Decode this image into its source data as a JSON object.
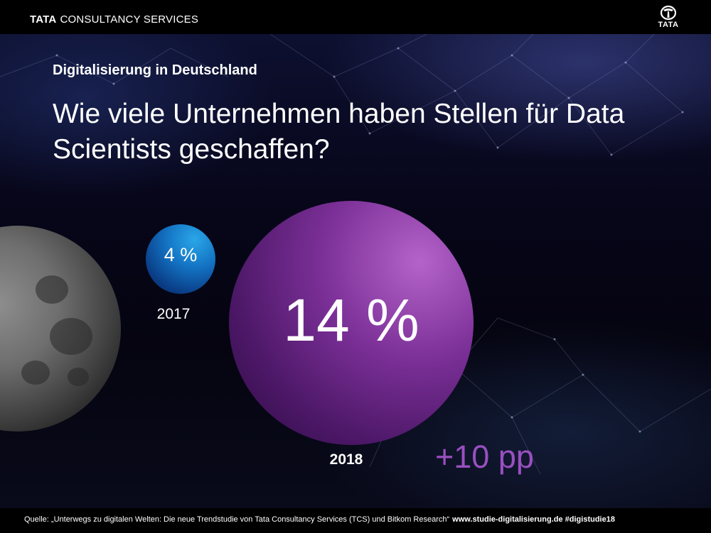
{
  "header": {
    "brand_bold": "TATA",
    "brand_rest": "CONSULTANCY SERVICES",
    "logo_word": "TATA",
    "logo_icon": "tata-logo-icon"
  },
  "subtitle": "Digitalisierung in Deutschland",
  "title": "Wie viele Unternehmen haben Stellen für Data Scientists geschaffen?",
  "chart_data": {
    "type": "bubble",
    "title": "Wie viele Unternehmen haben Stellen für Data Scientists geschaffen?",
    "unit": "%",
    "categories": [
      "2017",
      "2018"
    ],
    "values": [
      4,
      14
    ],
    "value_labels": [
      "4 %",
      "14 %"
    ],
    "annotation": "+10 pp",
    "colors": [
      "#1474c4",
      "#7a2f96"
    ]
  },
  "footer": {
    "source": "Quelle: „Unterwegs zu digitalen Welten: Die neue Trendstudie von Tata Consultancy Services (TCS) und Bitkom Research“",
    "url": "www.studie-digitalisierung.de #digistudie18"
  },
  "colors": {
    "background": "#05040c",
    "bar": "#000000",
    "accent_purple": "#9a4fc0",
    "accent_blue": "#1474c4"
  }
}
